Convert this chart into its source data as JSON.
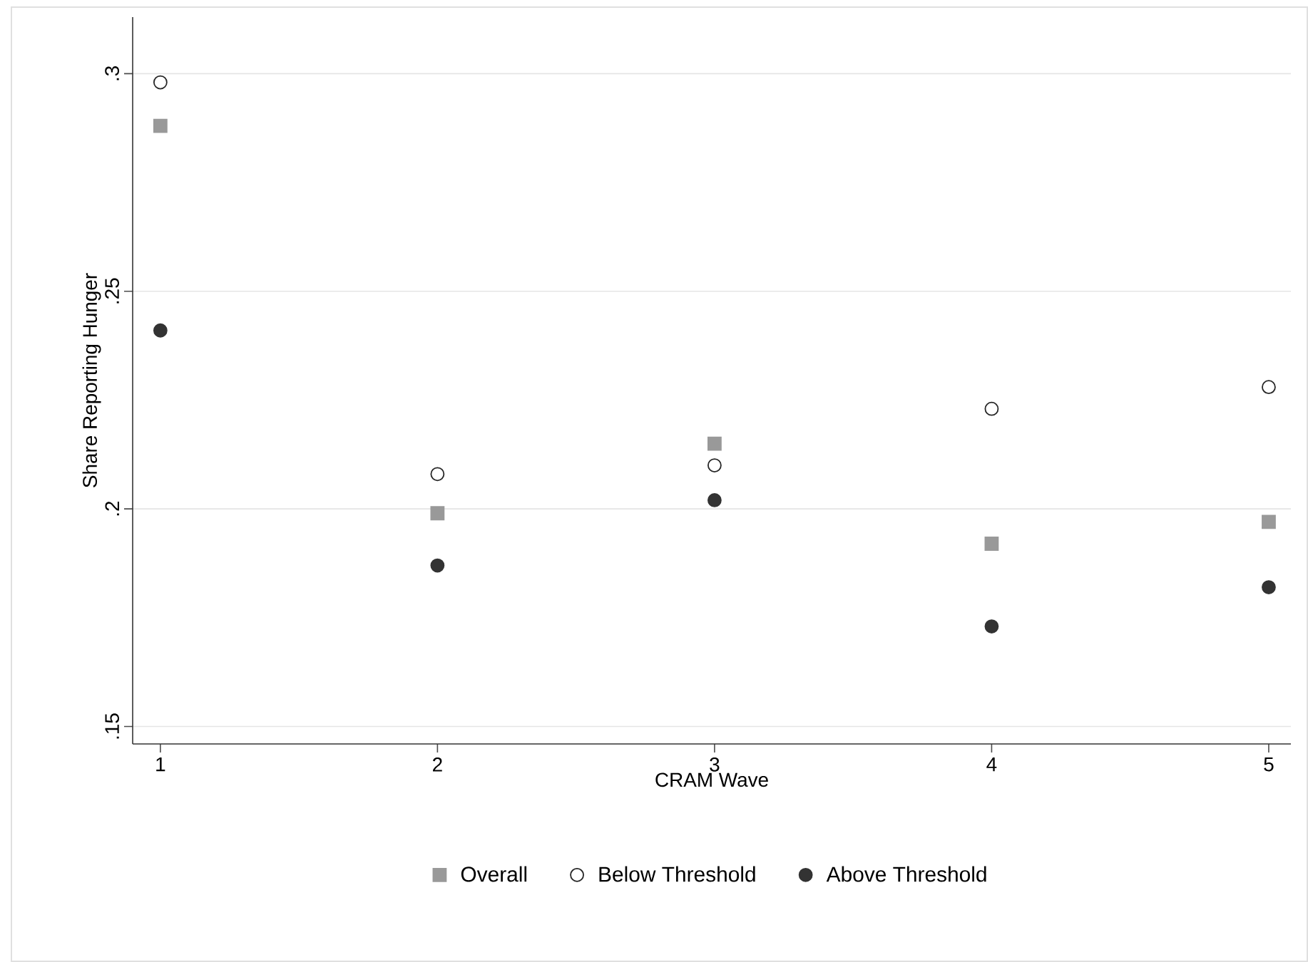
{
  "chart_data": {
    "type": "scatter",
    "xlabel": "CRAM Wave",
    "ylabel": "Share Reporting Hunger",
    "x": [
      1,
      2,
      3,
      4,
      5
    ],
    "series": [
      {
        "name": "Overall",
        "color": "#999999",
        "marker": "square",
        "values": [
          0.288,
          0.199,
          0.215,
          0.192,
          0.197
        ]
      },
      {
        "name": "Below Threshold",
        "color": "#262626",
        "marker": "circle",
        "values": [
          0.298,
          0.208,
          0.21,
          0.223,
          0.228
        ]
      },
      {
        "name": "Above Threshold",
        "color": "#333333",
        "marker": "circle",
        "values": [
          0.241,
          0.187,
          0.202,
          0.173,
          0.182
        ]
      }
    ],
    "xlim": [
      0.9,
      5.08
    ],
    "xticks": [
      1,
      2,
      3,
      4,
      5
    ],
    "ylim": [
      0.146,
      0.313
    ],
    "yticks": [
      {
        "value": 0.15,
        "label": ".15"
      },
      {
        "value": 0.2,
        "label": ".2"
      },
      {
        "value": 0.25,
        "label": ".25"
      },
      {
        "value": 0.3,
        "label": ".3"
      }
    ],
    "grid": "y",
    "legend": "bottom"
  }
}
